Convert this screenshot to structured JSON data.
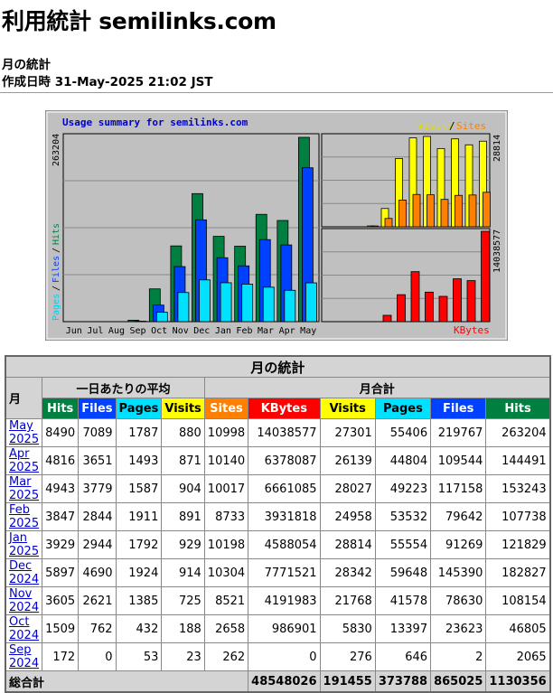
{
  "page": {
    "title": "利用統計 semilinks.com",
    "subtitle": "月の統計",
    "generated": "作成日時 31-May-2025 21:02 JST"
  },
  "colors": {
    "hits": "#008040",
    "files": "#0040ff",
    "pages": "#00e0ff",
    "visits": "#ffff00",
    "sites": "#ff8000",
    "kbytes": "#ff0000"
  },
  "chart_data": {
    "type": "bar",
    "title": "Usage summary for semilinks.com",
    "categories": [
      "Jun",
      "Jul",
      "Aug",
      "Sep",
      "Oct",
      "Nov",
      "Dec",
      "Jan",
      "Feb",
      "Mar",
      "Apr",
      "May"
    ],
    "left_legend": {
      "pages": "Pages",
      "sep1": "/",
      "files": "Files",
      "sep2": "/",
      "hits": "Hits"
    },
    "right_legend_top": {
      "visits": "Visits",
      "sep": "/",
      "sites": "Sites"
    },
    "right_legend_bottom": "KBytes",
    "max_hits_label": "263204",
    "max_visits_label": "28814",
    "max_kbytes_label": "14038577",
    "max_hits": 263204,
    "max_visits": 28814,
    "max_kbytes": 14038577,
    "series": [
      {
        "name": "Hits",
        "values": [
          0,
          0,
          0,
          2065,
          46805,
          108154,
          182827,
          121829,
          107738,
          153243,
          144491,
          263204
        ]
      },
      {
        "name": "Files",
        "values": [
          0,
          0,
          0,
          2,
          23623,
          78630,
          145390,
          91269,
          79642,
          117158,
          109544,
          219767
        ]
      },
      {
        "name": "Pages",
        "values": [
          0,
          0,
          0,
          646,
          13397,
          41578,
          59648,
          55554,
          53532,
          49223,
          44804,
          55406
        ]
      },
      {
        "name": "Visits",
        "values": [
          0,
          0,
          0,
          276,
          5830,
          21768,
          28342,
          28814,
          24958,
          28027,
          26139,
          27301
        ]
      },
      {
        "name": "Sites",
        "values": [
          0,
          0,
          0,
          262,
          2658,
          8521,
          10304,
          10198,
          8733,
          10017,
          10140,
          10998
        ]
      },
      {
        "name": "KBytes",
        "values": [
          0,
          0,
          0,
          0,
          986901,
          4191983,
          7771521,
          4588054,
          3931818,
          6661085,
          6378087,
          14038577
        ]
      }
    ]
  },
  "table": {
    "title": "月の統計",
    "month_header": "月",
    "daily_avg_header": "一日あたりの平均",
    "monthly_total_header": "月合計",
    "daily_cols": [
      "Hits",
      "Files",
      "Pages",
      "Visits"
    ],
    "total_cols": [
      "Sites",
      "KBytes",
      "Visits",
      "Pages",
      "Files",
      "Hits"
    ],
    "rows": [
      {
        "month": "May 2025",
        "d": [
          "8490",
          "7089",
          "1787",
          "880"
        ],
        "t": [
          "10998",
          "14038577",
          "27301",
          "55406",
          "219767",
          "263204"
        ]
      },
      {
        "month": "Apr 2025",
        "d": [
          "4816",
          "3651",
          "1493",
          "871"
        ],
        "t": [
          "10140",
          "6378087",
          "26139",
          "44804",
          "109544",
          "144491"
        ]
      },
      {
        "month": "Mar 2025",
        "d": [
          "4943",
          "3779",
          "1587",
          "904"
        ],
        "t": [
          "10017",
          "6661085",
          "28027",
          "49223",
          "117158",
          "153243"
        ]
      },
      {
        "month": "Feb 2025",
        "d": [
          "3847",
          "2844",
          "1911",
          "891"
        ],
        "t": [
          "8733",
          "3931818",
          "24958",
          "53532",
          "79642",
          "107738"
        ]
      },
      {
        "month": "Jan 2025",
        "d": [
          "3929",
          "2944",
          "1792",
          "929"
        ],
        "t": [
          "10198",
          "4588054",
          "28814",
          "55554",
          "91269",
          "121829"
        ]
      },
      {
        "month": "Dec 2024",
        "d": [
          "5897",
          "4690",
          "1924",
          "914"
        ],
        "t": [
          "10304",
          "7771521",
          "28342",
          "59648",
          "145390",
          "182827"
        ]
      },
      {
        "month": "Nov 2024",
        "d": [
          "3605",
          "2621",
          "1385",
          "725"
        ],
        "t": [
          "8521",
          "4191983",
          "21768",
          "41578",
          "78630",
          "108154"
        ]
      },
      {
        "month": "Oct 2024",
        "d": [
          "1509",
          "762",
          "432",
          "188"
        ],
        "t": [
          "2658",
          "986901",
          "5830",
          "13397",
          "23623",
          "46805"
        ]
      },
      {
        "month": "Sep 2024",
        "d": [
          "172",
          "0",
          "53",
          "23"
        ],
        "t": [
          "262",
          "0",
          "276",
          "646",
          "2",
          "2065"
        ]
      }
    ],
    "total_label": "総合計",
    "totals": [
      "48548026",
      "191455",
      "373788",
      "865025",
      "1130356"
    ]
  }
}
